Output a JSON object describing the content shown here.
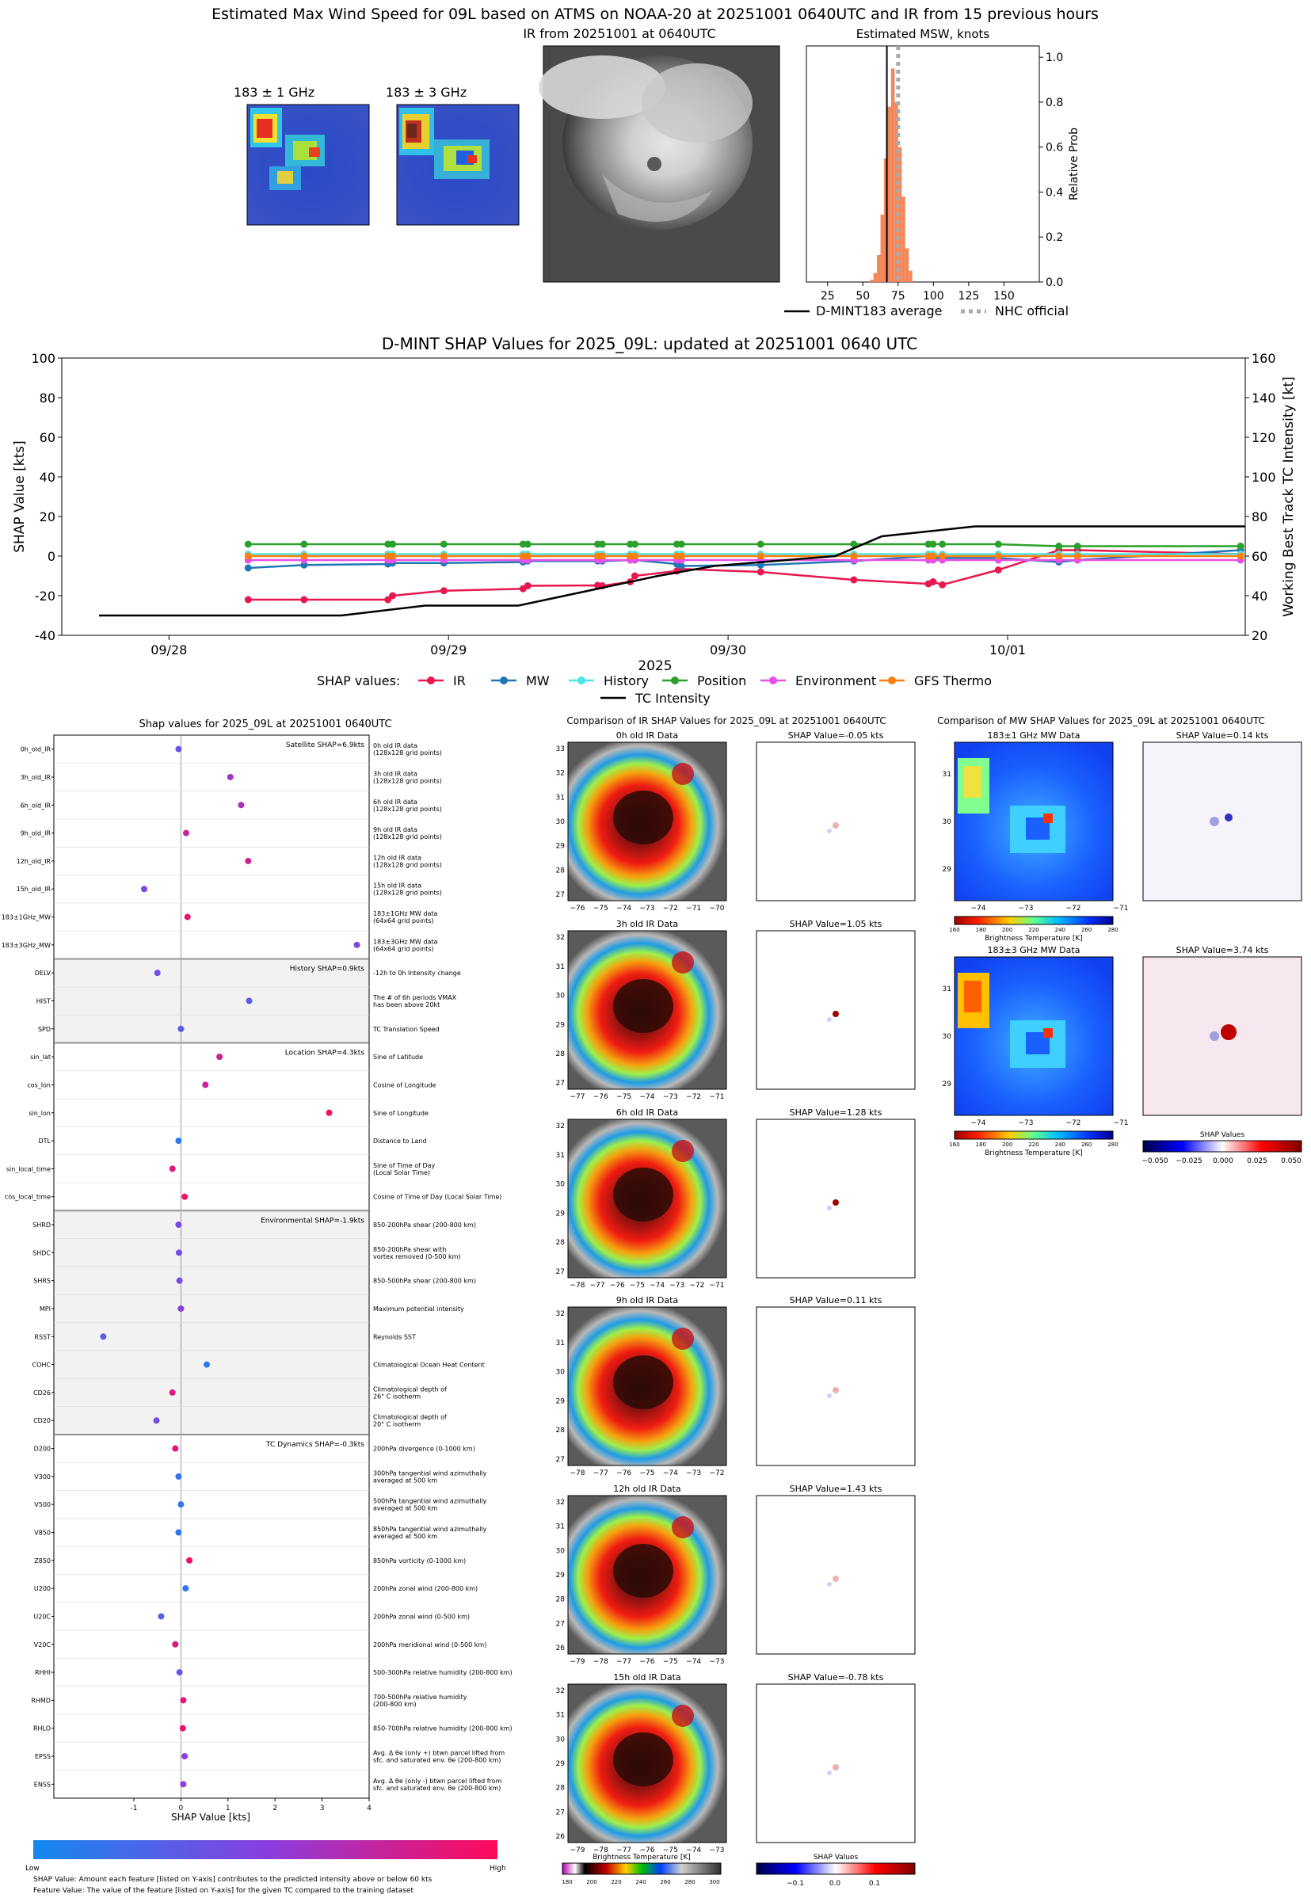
{
  "header": {
    "title": "Estimated Max Wind Speed for 09L based on ATMS on NOAA-20 at 20251001 0640UTC and IR from 15 previous hours",
    "mw1_title": "183 ± 1 GHz",
    "mw3_title": "183 ± 3 GHz",
    "ir_title": "IR from 20251001 at 0640UTC",
    "hist_title": "Estimated MSW, knots",
    "hist_ylabel": "Relative Prob",
    "legend_avg": "D-MINT183 average",
    "legend_nhc": "NHC official"
  },
  "timeseries": {
    "title": "D-MINT SHAP Values for 2025_09L: updated at 20251001 0640 UTC",
    "ylabel_left": "SHAP Value [kts]",
    "ylabel_right": "Working Best Track TC Intensity [kt]",
    "year_label": "2025",
    "legend_prefix": "SHAP values:",
    "legend": [
      "IR",
      "MW",
      "History",
      "Position",
      "Environment",
      "GFS Thermo",
      "TC Intensity"
    ]
  },
  "shap_panel": {
    "title": "Shap values for 2025_09L at 20251001 0640UTC",
    "xlabel": "SHAP Value [kts]",
    "groups": [
      {
        "label": "Satellite SHAP=6.9kts",
        "shaded": false
      },
      {
        "label": "History SHAP=0.9kts",
        "shaded": true
      },
      {
        "label": "Location SHAP=4.3kts",
        "shaded": false
      },
      {
        "label": "Environmental SHAP=-1.9kts",
        "shaded": true
      },
      {
        "label": "TC Dynamics SHAP=-0.3kts",
        "shaded": false
      }
    ],
    "colorbar_low": "Low",
    "colorbar_high": "High",
    "note1": "SHAP Value: Amount each feature [listed on Y-axis] contributes to the predicted intensity above or below 60 kts",
    "note2": "Feature Value: The value of the feature [listed on Y-axis] for the given TC compared to the training dataset"
  },
  "ir_compare": {
    "title": "Comparison of IR SHAP Values for 2025_09L at 20251001 0640UTC",
    "panels": [
      {
        "data_title": "0h old IR Data",
        "shap_title": "SHAP Value=-0.05 kts",
        "yticks": [
          "33",
          "32",
          "31",
          "30",
          "29",
          "28",
          "27"
        ],
        "xticks": [
          "−76",
          "−75",
          "−74",
          "−73",
          "−72",
          "−71",
          "−70"
        ]
      },
      {
        "data_title": "3h old IR Data",
        "shap_title": "SHAP Value=1.05 kts",
        "yticks": [
          "32",
          "31",
          "30",
          "29",
          "28",
          "27"
        ],
        "xticks": [
          "−77",
          "−76",
          "−75",
          "−74",
          "−73",
          "−72",
          "−71"
        ]
      },
      {
        "data_title": "6h old IR Data",
        "shap_title": "SHAP Value=1.28 kts",
        "yticks": [
          "32",
          "31",
          "30",
          "29",
          "28",
          "27"
        ],
        "xticks": [
          "−78",
          "−77",
          "−76",
          "−75",
          "−74",
          "−73",
          "−72",
          "−71"
        ]
      },
      {
        "data_title": "9h old IR Data",
        "shap_title": "SHAP Value=0.11 kts",
        "yticks": [
          "32",
          "31",
          "30",
          "29",
          "28",
          "27"
        ],
        "xticks": [
          "−78",
          "−77",
          "−76",
          "−75",
          "−74",
          "−73",
          "−72"
        ]
      },
      {
        "data_title": "12h old IR Data",
        "shap_title": "SHAP Value=1.43 kts",
        "yticks": [
          "32",
          "31",
          "30",
          "29",
          "28",
          "27",
          "26"
        ],
        "xticks": [
          "−79",
          "−78",
          "−77",
          "−76",
          "−75",
          "−74",
          "−73"
        ]
      },
      {
        "data_title": "15h old IR Data",
        "shap_title": "SHAP Value=-0.78 kts",
        "yticks": [
          "32",
          "31",
          "30",
          "29",
          "28",
          "27",
          "26"
        ],
        "xticks": [
          "−79",
          "−78",
          "−77",
          "−76",
          "−75",
          "−74",
          "−73"
        ]
      }
    ],
    "cbar_label": "Brightness Temperature [K]",
    "cbar_ticks": [
      "180",
      "200",
      "220",
      "240",
      "260",
      "280",
      "300"
    ],
    "shap_cbar_label": "SHAP Values",
    "shap_cbar_ticks": [
      "−0.1",
      "0.0",
      "0.1"
    ]
  },
  "mw_compare": {
    "title": "Comparison of MW SHAP Values for 2025_09L at 20251001 0640UTC",
    "panels": [
      {
        "data_title": "183±1 GHz MW Data",
        "shap_title": "SHAP Value=0.14 kts",
        "yticks": [
          "31",
          "30",
          "29"
        ],
        "xticks": [
          "−74",
          "−73",
          "−72",
          "−71"
        ]
      },
      {
        "data_title": "183±3 GHz MW Data",
        "shap_title": "SHAP Value=3.74 kts",
        "yticks": [
          "31",
          "30",
          "29"
        ],
        "xticks": [
          "−74",
          "−73",
          "−72",
          "−71"
        ]
      }
    ],
    "cbar_label": "Brightness Temperature [K]",
    "cbar_ticks": [
      "160",
      "180",
      "200",
      "220",
      "240",
      "260",
      "280"
    ],
    "shap_cbar_label": "SHAP Values",
    "shap_cbar_ticks": [
      "−0.050",
      "−0.025",
      "0.000",
      "0.025",
      "0.050"
    ]
  },
  "chart_data": [
    {
      "type": "bar",
      "title": "Estimated MSW, knots",
      "ylabel": "Relative Prob",
      "xlim": [
        10,
        175
      ],
      "ylim": [
        0,
        1.05
      ],
      "xticks": [
        25,
        50,
        75,
        100,
        125,
        150
      ],
      "yticks": [
        0.0,
        0.2,
        0.4,
        0.6,
        0.8,
        1.0
      ],
      "bin_width": 2.5,
      "bins": [
        55,
        57.5,
        60,
        62.5,
        65,
        67.5,
        70,
        72.5,
        75,
        77.5,
        80,
        82.5
      ],
      "values": [
        0.01,
        0.04,
        0.12,
        0.3,
        0.55,
        0.78,
        0.95,
        0.8,
        0.6,
        0.38,
        0.15,
        0.05
      ],
      "average": 67,
      "nhc_official": 75
    },
    {
      "type": "line",
      "title": "D-MINT SHAP Values for 2025_09L: updated at 20251001 0640 UTC",
      "xlabel": "2025",
      "ylabel": "SHAP Value [kts]",
      "y2label": "Working Best Track TC Intensity [kt]",
      "xlim": [
        0,
        12.7
      ],
      "x_tick_labels": [
        "09/28",
        "09/29",
        "09/30",
        "10/01"
      ],
      "x_tick_values": [
        1.15,
        4.15,
        7.15,
        10.15
      ],
      "ylim": [
        -40,
        100
      ],
      "y2lim": [
        20,
        160
      ],
      "x": [
        2.0,
        2.6,
        3.5,
        3.55,
        4.1,
        4.95,
        5.0,
        5.75,
        5.8,
        6.1,
        6.15,
        6.6,
        6.65,
        7.5,
        8.5,
        9.3,
        9.35,
        9.45,
        10.05,
        10.7,
        10.9,
        12.65
      ],
      "series": [
        {
          "name": "IR",
          "color": "#e8174f",
          "values": [
            -22,
            -22,
            -22,
            -20,
            -17.5,
            -16.5,
            -15,
            -14.8,
            -15,
            -13,
            -10,
            -7.5,
            -6.5,
            -8,
            -12,
            -14,
            -13,
            -14.5,
            -7,
            3,
            3,
            1
          ]
        },
        {
          "name": "MW",
          "color": "#1f77b4",
          "values": [
            -6,
            -4.5,
            -4,
            -3.5,
            -3.5,
            -3,
            -2.5,
            -2.5,
            -2.5,
            -2,
            -2,
            -4,
            -5,
            -4.5,
            -2.5,
            0,
            -1,
            -1,
            -1,
            -3,
            -2,
            3
          ]
        },
        {
          "name": "History",
          "color": "#4be6e6",
          "values": [
            1,
            1,
            1,
            1,
            1,
            1,
            1,
            1,
            1,
            1,
            1,
            1,
            1,
            1,
            1,
            1,
            1,
            1,
            1,
            1,
            1,
            1
          ]
        },
        {
          "name": "Position",
          "color": "#2ca02c",
          "values": [
            6,
            6,
            6,
            6,
            6,
            6,
            6,
            6,
            6,
            6,
            6,
            6,
            6,
            6,
            6,
            6,
            6,
            6,
            6,
            5,
            5,
            5
          ]
        },
        {
          "name": "Environment",
          "color": "#e84ee8",
          "values": [
            -2,
            -2,
            -2,
            -2,
            -2,
            -2,
            -2,
            -2,
            -2,
            -2,
            -2,
            -2,
            -2,
            -2,
            -2,
            -2,
            -2,
            -2,
            -2,
            -2,
            -2,
            -2
          ]
        },
        {
          "name": "GFS Thermo",
          "color": "#ff7f0e",
          "values": [
            0,
            0,
            0,
            0,
            0,
            0,
            0,
            0,
            0,
            0,
            0,
            0,
            0,
            0,
            0,
            0,
            0,
            0,
            0,
            0,
            0,
            0
          ]
        }
      ],
      "tc_intensity": {
        "name": "TC Intensity",
        "x": [
          0.4,
          3.0,
          3.9,
          4.9,
          5.4,
          6.4,
          7.0,
          8.3,
          8.8,
          9.8,
          12.7
        ],
        "values": [
          30,
          30,
          35,
          35,
          40,
          50,
          55,
          60,
          70,
          75,
          75
        ]
      }
    },
    {
      "type": "scatter",
      "title": "Shap values for 2025_09L at 20251001 0640UTC",
      "xlabel": "SHAP Value [kts]",
      "xlim": [
        -2.7,
        4.0
      ],
      "xticks": [
        -1,
        0,
        1,
        2,
        3,
        4
      ],
      "features": [
        {
          "name": "0h_old_IR",
          "desc": [
            "0h old IR data",
            "(128x128 grid points)"
          ],
          "shap": -0.05,
          "fval": 0.35,
          "group": 0
        },
        {
          "name": "3h_old_IR",
          "desc": [
            "3h old IR data",
            "(128x128 grid points)"
          ],
          "shap": 1.05,
          "fval": 0.6,
          "group": 0
        },
        {
          "name": "6h_old_IR",
          "desc": [
            "6h old IR data",
            "(128x128 grid points)"
          ],
          "shap": 1.28,
          "fval": 0.65,
          "group": 0
        },
        {
          "name": "9h_old_IR",
          "desc": [
            "9h old IR data",
            "(128x128 grid points)"
          ],
          "shap": 0.11,
          "fval": 0.75,
          "group": 0
        },
        {
          "name": "12h_old_IR",
          "desc": [
            "12h old IR data",
            "(128x128 grid points)"
          ],
          "shap": 1.43,
          "fval": 0.8,
          "group": 0
        },
        {
          "name": "15h_old_IR",
          "desc": [
            "15h old IR data",
            "(128x128 grid points)"
          ],
          "shap": -0.78,
          "fval": 0.45,
          "group": 0
        },
        {
          "name": "183±1GHz_MW",
          "desc": [
            "183±1GHz MW data",
            "(64x64 grid points)"
          ],
          "shap": 0.14,
          "fval": 0.92,
          "group": 0
        },
        {
          "name": "183±3GHz_MW",
          "desc": [
            "183±3GHz MW data",
            "(64x64 grid points)"
          ],
          "shap": 3.74,
          "fval": 0.45,
          "group": 0
        },
        {
          "name": "DELV",
          "desc": [
            "-12h to 0h Intensity change"
          ],
          "shap": -0.5,
          "fval": 0.4,
          "group": 1
        },
        {
          "name": "HIST",
          "desc": [
            "The # of 6h periods VMAX",
            "has been above 20kt"
          ],
          "shap": 1.45,
          "fval": 0.3,
          "group": 1
        },
        {
          "name": "SPD",
          "desc": [
            "TC Translation Speed"
          ],
          "shap": 0.0,
          "fval": 0.3,
          "group": 1
        },
        {
          "name": "sin_lat",
          "desc": [
            "Sine of Latitude"
          ],
          "shap": 0.82,
          "fval": 0.8,
          "group": 2
        },
        {
          "name": "cos_lon",
          "desc": [
            "Cosine of Longitude"
          ],
          "shap": 0.52,
          "fval": 0.75,
          "group": 2
        },
        {
          "name": "sin_lon",
          "desc": [
            "Sine of Longitude"
          ],
          "shap": 3.15,
          "fval": 0.96,
          "group": 2
        },
        {
          "name": "DTL",
          "desc": [
            "Distance to Land"
          ],
          "shap": -0.05,
          "fval": 0.1,
          "group": 2
        },
        {
          "name": "sin_local_time",
          "desc": [
            "Sine of Time of Day",
            "(Local Solar Time)"
          ],
          "shap": -0.18,
          "fval": 0.85,
          "group": 2
        },
        {
          "name": "cos_local_time",
          "desc": [
            "Cosine of Time of Day (Local Solar Time)"
          ],
          "shap": 0.08,
          "fval": 0.95,
          "group": 2
        },
        {
          "name": "SHRD",
          "desc": [
            "850-200hPa shear (200-800 km)"
          ],
          "shap": -0.05,
          "fval": 0.4,
          "group": 3
        },
        {
          "name": "SHDC",
          "desc": [
            "850-200hPa shear with",
            "vortex removed (0-500 km)"
          ],
          "shap": -0.04,
          "fval": 0.4,
          "group": 3
        },
        {
          "name": "SHRS",
          "desc": [
            "850-500hPa shear (200-800 km)"
          ],
          "shap": -0.03,
          "fval": 0.4,
          "group": 3
        },
        {
          "name": "MPI",
          "desc": [
            "Maximum potential intensity"
          ],
          "shap": 0.0,
          "fval": 0.5,
          "group": 3
        },
        {
          "name": "RSST",
          "desc": [
            "Reynolds SST"
          ],
          "shap": -1.65,
          "fval": 0.3,
          "group": 3
        },
        {
          "name": "COHC",
          "desc": [
            "Climatological Ocean Heat Content"
          ],
          "shap": 0.55,
          "fval": 0.1,
          "group": 3
        },
        {
          "name": "CD26",
          "desc": [
            "Climatological depth of",
            "26° C isotherm"
          ],
          "shap": -0.18,
          "fval": 0.85,
          "group": 3
        },
        {
          "name": "CD20",
          "desc": [
            "Climatological depth of",
            "20° C isotherm"
          ],
          "shap": -0.52,
          "fval": 0.4,
          "group": 3
        },
        {
          "name": "D200",
          "desc": [
            "200hPa divergence (0-1000 km)"
          ],
          "shap": -0.12,
          "fval": 0.9,
          "group": 4
        },
        {
          "name": "V300",
          "desc": [
            "300hPa tangential wind azimuthally",
            "averaged at 500 km"
          ],
          "shap": -0.05,
          "fval": 0.15,
          "group": 4
        },
        {
          "name": "V500",
          "desc": [
            "500hPa tangential wind azimuthally",
            "averaged at 500 km"
          ],
          "shap": 0.0,
          "fval": 0.12,
          "group": 4
        },
        {
          "name": "V850",
          "desc": [
            "850hPa tangential wind azimuthally",
            "averaged at 500 km"
          ],
          "shap": -0.05,
          "fval": 0.12,
          "group": 4
        },
        {
          "name": "Z850",
          "desc": [
            "850hPa vorticity (0-1000 km)"
          ],
          "shap": 0.18,
          "fval": 0.95,
          "group": 4
        },
        {
          "name": "U200",
          "desc": [
            "200hPa zonal wind (200-800 km)"
          ],
          "shap": 0.1,
          "fval": 0.1,
          "group": 4
        },
        {
          "name": "U20C",
          "desc": [
            "200hPa zonal wind (0-500 km)"
          ],
          "shap": -0.42,
          "fval": 0.3,
          "group": 4
        },
        {
          "name": "V20C",
          "desc": [
            "200hPa meridional wind (0-500 km)"
          ],
          "shap": -0.12,
          "fval": 0.85,
          "group": 4
        },
        {
          "name": "RHHI",
          "desc": [
            "500-300hPa relative humidity (200-800 km)"
          ],
          "shap": -0.03,
          "fval": 0.3,
          "group": 4
        },
        {
          "name": "RHMD",
          "desc": [
            "700-500hPa relative humidity",
            "(200-800 km)"
          ],
          "shap": 0.05,
          "fval": 0.9,
          "group": 4
        },
        {
          "name": "RHLO",
          "desc": [
            "850-700hPa relative humidity (200-800 km)"
          ],
          "shap": 0.04,
          "fval": 0.92,
          "group": 4
        },
        {
          "name": "EPSS",
          "desc": [
            "Avg. Δ θe (only +) btwn parcel lifted from",
            "sfc. and saturated env. θe (200-800 km)"
          ],
          "shap": 0.08,
          "fval": 0.5,
          "group": 4
        },
        {
          "name": "ENSS",
          "desc": [
            "Avg. Δ θe (only -) btwn parcel lifted from",
            "sfc. and saturated env. θe (200-800 km)"
          ],
          "shap": 0.05,
          "fval": 0.5,
          "group": 4
        }
      ]
    }
  ]
}
